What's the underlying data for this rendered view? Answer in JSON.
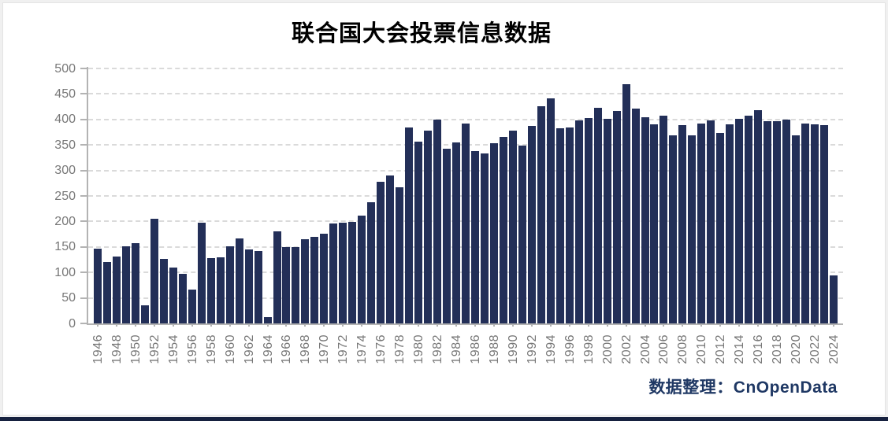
{
  "header": {
    "title": "联合国大会投票信息数据"
  },
  "footer": {
    "caption": "数据整理：CnOpenData"
  },
  "colors": {
    "bar": "#232F58",
    "caption": "#1f3864",
    "axis": "#b3b3b3",
    "grid": "#dadada",
    "tick_label": "#787878",
    "bottom_strip": "#16213f",
    "background": "#f0f0f0",
    "card": "#ffffff"
  },
  "chart_data": {
    "type": "bar",
    "title": "联合国大会投票信息数据",
    "xlabel": "",
    "ylabel": "",
    "ylim": [
      0,
      500
    ],
    "ytick_step": 50,
    "xtick_step": 2,
    "grid": true,
    "legend": "none",
    "bar_color": "#232F58",
    "years": [
      1946,
      1947,
      1948,
      1949,
      1950,
      1951,
      1952,
      1953,
      1954,
      1955,
      1956,
      1957,
      1958,
      1959,
      1960,
      1961,
      1962,
      1963,
      1964,
      1965,
      1966,
      1967,
      1968,
      1969,
      1970,
      1971,
      1972,
      1973,
      1974,
      1975,
      1976,
      1977,
      1978,
      1979,
      1980,
      1981,
      1982,
      1983,
      1984,
      1985,
      1986,
      1987,
      1988,
      1989,
      1990,
      1991,
      1992,
      1993,
      1994,
      1995,
      1996,
      1997,
      1998,
      1999,
      2000,
      2001,
      2002,
      2003,
      2004,
      2005,
      2006,
      2007,
      2008,
      2009,
      2010,
      2011,
      2012,
      2013,
      2014,
      2015,
      2016,
      2017,
      2018,
      2019,
      2020,
      2021,
      2022,
      2023,
      2024
    ],
    "values": [
      147,
      120,
      131,
      151,
      157,
      35,
      206,
      127,
      110,
      97,
      67,
      198,
      128,
      130,
      151,
      167,
      145,
      142,
      13,
      181,
      150,
      150,
      165,
      170,
      176,
      196,
      198,
      199,
      212,
      238,
      278,
      290,
      267,
      384,
      357,
      378,
      400,
      342,
      355,
      392,
      338,
      333,
      354,
      365,
      378,
      349,
      387,
      426,
      441,
      383,
      384,
      398,
      403,
      423,
      402,
      417,
      469,
      421,
      405,
      391,
      408,
      369,
      389,
      369,
      392,
      398,
      373,
      390,
      402,
      408,
      419,
      397,
      397,
      399,
      369,
      392,
      390,
      389,
      94
    ]
  }
}
